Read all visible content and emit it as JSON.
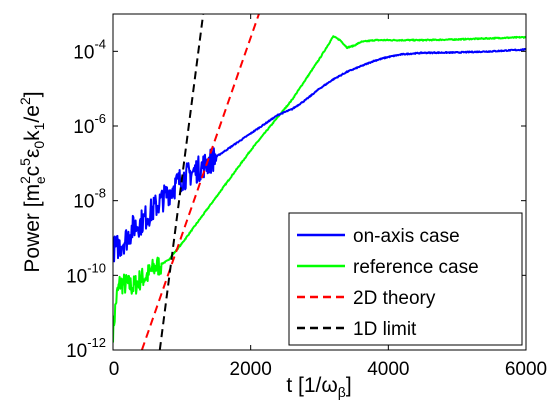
{
  "chart_data": {
    "type": "line",
    "title": "",
    "xlabel": "t [1/ω_β]",
    "ylabel": "Power [m_e^2 c^5 ε_0 k_1 / e^2]",
    "xlim": [
      0,
      6000
    ],
    "ylim_log10": [
      -12,
      -3
    ],
    "yscale": "log",
    "grid": false,
    "legend_placement": "bottom-right",
    "x_ticks": [
      0,
      2000,
      4000,
      6000
    ],
    "x_tick_labels": [
      "0",
      "2000",
      "4000",
      "6000"
    ],
    "y_ticks_log10": [
      -12,
      -10,
      -8,
      -6,
      -4
    ],
    "y_tick_labels": [
      {
        "base": "10",
        "exp": "-12"
      },
      {
        "base": "10",
        "exp": "-10"
      },
      {
        "base": "10",
        "exp": "-8"
      },
      {
        "base": "10",
        "exp": "-6"
      },
      {
        "base": "10",
        "exp": "-4"
      }
    ],
    "series": [
      {
        "name": "on-axis case",
        "color": "#0000ff",
        "style": "solid",
        "noise_amplitude_decades": 0.35,
        "noise_until_x": 1500,
        "x": [
          0,
          100,
          200,
          300,
          400,
          500,
          600,
          700,
          800,
          900,
          1000,
          1200,
          1400,
          1600,
          1800,
          2000,
          2200,
          2400,
          2600,
          2800,
          3000,
          3200,
          3400,
          3600,
          3800,
          4000,
          4200,
          4500,
          5000,
          5500,
          6000
        ],
        "log10_y": [
          -9.3,
          -9.2,
          -9.0,
          -8.7,
          -8.6,
          -8.4,
          -8.2,
          -8.0,
          -7.8,
          -7.6,
          -7.4,
          -7.2,
          -6.95,
          -6.7,
          -6.45,
          -6.2,
          -5.95,
          -5.7,
          -5.55,
          -5.3,
          -5.0,
          -4.75,
          -4.55,
          -4.4,
          -4.25,
          -4.15,
          -4.08,
          -4.04,
          -4.03,
          -4.0,
          -3.95
        ]
      },
      {
        "name": "reference case",
        "color": "#00ff00",
        "style": "solid",
        "noise_amplitude_decades": 0.3,
        "noise_until_x": 700,
        "x": [
          0,
          50,
          100,
          200,
          300,
          400,
          500,
          600,
          700,
          800,
          1000,
          1200,
          1400,
          1600,
          1800,
          2000,
          2200,
          2400,
          2600,
          2800,
          3000,
          3200,
          3300,
          3400,
          3500,
          3600,
          3800,
          4000,
          4500,
          5000,
          5500,
          6000
        ],
        "log10_y": [
          -11.5,
          -10.6,
          -10.2,
          -10.25,
          -10.3,
          -10.1,
          -10.0,
          -9.8,
          -9.7,
          -9.6,
          -9.15,
          -8.65,
          -8.15,
          -7.65,
          -7.15,
          -6.65,
          -6.2,
          -5.75,
          -5.3,
          -4.75,
          -4.2,
          -3.6,
          -3.7,
          -3.9,
          -3.85,
          -3.75,
          -3.7,
          -3.7,
          -3.7,
          -3.68,
          -3.65,
          -3.62
        ]
      },
      {
        "name": "2D theory",
        "color": "#ff0000",
        "style": "dashed",
        "x": [
          420,
          2120
        ],
        "log10_y": [
          -12,
          -3
        ]
      },
      {
        "name": "1D limit",
        "color": "#000000",
        "style": "dashed",
        "x": [
          680,
          1310
        ],
        "log10_y": [
          -12,
          -3
        ]
      }
    ]
  }
}
